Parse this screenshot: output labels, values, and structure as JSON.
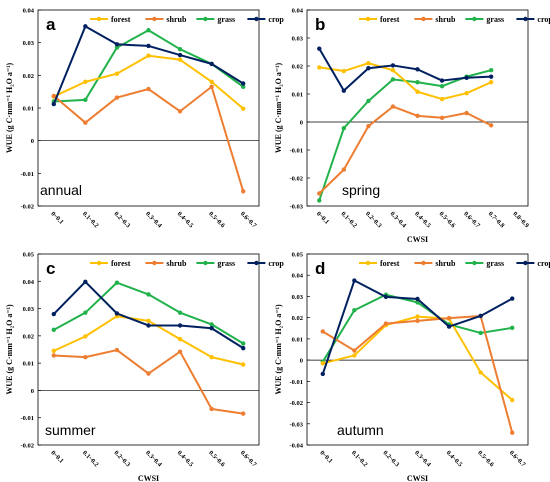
{
  "colors": {
    "forest": "#FFC000",
    "shrub": "#ED7D31",
    "grass": "#21B24B",
    "crop": "#002060"
  },
  "chart_data": [
    {
      "type": "line",
      "panel": "a",
      "season": "annual",
      "categories": [
        "0~0.1",
        "0.1~0.2",
        "0.2~0.3",
        "0.3~0.4",
        "0.4~0.5",
        "0.5~0.6",
        "0.6~0.7"
      ],
      "ylim": [
        -0.02,
        0.04
      ],
      "yticks": [
        "0.04",
        "0.03",
        "0.02",
        "0.01",
        "0",
        "-0.01",
        "-0.02"
      ],
      "xlabel": "",
      "ylabel": "WUE (g C·mm⁻¹ H₂O a⁻¹)",
      "series": [
        {
          "name": "forest",
          "values": [
            0.0135,
            0.018,
            0.0205,
            0.026,
            0.0248,
            0.018,
            0.0098
          ]
        },
        {
          "name": "shrub",
          "values": [
            0.0137,
            0.0055,
            0.0132,
            0.0158,
            0.009,
            0.0165,
            -0.0155
          ]
        },
        {
          "name": "grass",
          "values": [
            0.012,
            0.0125,
            0.0285,
            0.0338,
            0.028,
            0.0235,
            0.0165
          ]
        },
        {
          "name": "crop",
          "values": [
            0.0112,
            0.035,
            0.0295,
            0.029,
            0.0262,
            0.0235,
            0.0175
          ]
        }
      ]
    },
    {
      "type": "line",
      "panel": "b",
      "season": "spring",
      "categories": [
        "0~0.1",
        "0.1~0.2",
        "0.2~0.3",
        "0.3~0.4",
        "0.4~0.5",
        "0.5~0.6",
        "0.6~0.7",
        "0.7~0.8",
        "0.8~0.9"
      ],
      "ylim": [
        -0.03,
        0.04
      ],
      "yticks": [
        "0.04",
        "0.03",
        "0.02",
        "0.01",
        "0",
        "-0.01",
        "-0.02",
        "-0.03"
      ],
      "xlabel": "CWSI",
      "ylabel": "WUE (g C·mm⁻¹ H₂O a⁻¹)",
      "series": [
        {
          "name": "forest",
          "values": [
            0.0195,
            0.0182,
            0.021,
            0.0185,
            0.0108,
            0.0082,
            0.0103,
            0.0142,
            null
          ]
        },
        {
          "name": "shrub",
          "values": [
            -0.0255,
            -0.017,
            -0.0015,
            0.0055,
            0.0022,
            0.0015,
            0.0032,
            -0.0012,
            null
          ]
        },
        {
          "name": "grass",
          "values": [
            -0.028,
            -0.0022,
            0.0075,
            0.0152,
            0.0142,
            0.0128,
            0.0162,
            0.0185,
            null
          ]
        },
        {
          "name": "crop",
          "values": [
            0.0262,
            0.0112,
            0.0192,
            0.0202,
            0.0188,
            0.0148,
            0.0158,
            0.0162,
            null
          ]
        }
      ]
    },
    {
      "type": "line",
      "panel": "c",
      "season": "summer",
      "categories": [
        "0~0.1",
        "0.1~0.2",
        "0.2~0.3",
        "0.3~0.4",
        "0.4~0.5",
        "0.5~0.6",
        "0.6~0.7"
      ],
      "ylim": [
        -0.02,
        0.05
      ],
      "yticks": [
        "0.05",
        "0.04",
        "0.03",
        "0.02",
        "0.01",
        "0",
        "-0.01",
        "-0.02"
      ],
      "xlabel": "CWSI",
      "ylabel": "WUE (g C·mm⁻¹ H₂O a⁻¹)",
      "series": [
        {
          "name": "forest",
          "values": [
            0.0145,
            0.0198,
            0.0272,
            0.0255,
            0.0188,
            0.0122,
            0.0095
          ]
        },
        {
          "name": "shrub",
          "values": [
            0.0128,
            0.0122,
            0.0148,
            0.0062,
            0.0142,
            -0.0068,
            -0.0085
          ]
        },
        {
          "name": "grass",
          "values": [
            0.0222,
            0.0285,
            0.0395,
            0.0352,
            0.0285,
            0.0242,
            0.0172
          ]
        },
        {
          "name": "crop",
          "values": [
            0.028,
            0.0398,
            0.0282,
            0.0238,
            0.0238,
            0.0228,
            0.0155
          ]
        }
      ]
    },
    {
      "type": "line",
      "panel": "d",
      "season": "autumn",
      "categories": [
        "0~0.1",
        "0.1~0.2",
        "0.2~0.3",
        "0.3~0.4",
        "0.4~0.5",
        "0.5~0.6",
        "0.6~0.7"
      ],
      "ylim": [
        -0.04,
        0.05
      ],
      "yticks": [
        "0.05",
        "0.04",
        "0.03",
        "0.02",
        "0.01",
        "0",
        "-0.01",
        "-0.02",
        "-0.03",
        "-0.04"
      ],
      "xlabel": "CWSI",
      "ylabel": "WUE (g C·mm⁻¹ H₂O a⁻¹)",
      "series": [
        {
          "name": "forest",
          "values": [
            -0.0015,
            0.0022,
            0.0165,
            0.0205,
            0.0195,
            -0.0058,
            -0.0188
          ]
        },
        {
          "name": "shrub",
          "values": [
            0.0135,
            0.0045,
            0.0172,
            0.0185,
            0.0198,
            0.0208,
            -0.0342
          ]
        },
        {
          "name": "grass",
          "values": [
            -0.0008,
            0.0235,
            0.0308,
            0.0272,
            0.0168,
            0.0128,
            0.0152
          ]
        },
        {
          "name": "crop",
          "values": [
            -0.0065,
            0.0375,
            0.0298,
            0.0288,
            0.0158,
            0.0208,
            0.029
          ]
        }
      ]
    }
  ]
}
